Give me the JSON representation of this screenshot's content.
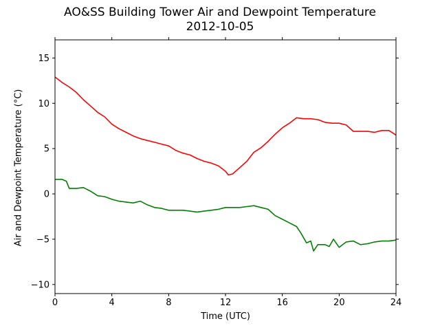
{
  "chart_data": {
    "type": "line",
    "title": "AO&SS Building Tower Air and Dewpoint Temperature",
    "subtitle": "2012-10-05",
    "xlabel": "Time (UTC)",
    "ylabel": "Air and Dewpoint Temperature (°C)",
    "xlim": [
      0,
      24
    ],
    "ylim": [
      -11,
      17
    ],
    "xticks": [
      0,
      4,
      8,
      12,
      16,
      20,
      24
    ],
    "xtick_labels": [
      "0",
      "4",
      "8",
      "12",
      "16",
      "20",
      "24"
    ],
    "yticks": [
      -10,
      -5,
      0,
      5,
      10,
      15
    ],
    "ytick_labels": [
      "−10",
      "−5",
      "0",
      "5",
      "10",
      "15"
    ],
    "grid": false,
    "series": [
      {
        "color": "#ff0000",
        "x": [
          0,
          0.5,
          1,
          1.5,
          2,
          2.5,
          3,
          3.5,
          4,
          4.5,
          5,
          5.5,
          6,
          6.5,
          7,
          7.5,
          8,
          8.5,
          9,
          9.5,
          10,
          10.5,
          11,
          11.5,
          12,
          12.2,
          12.5,
          13,
          13.5,
          14,
          14.5,
          15,
          15.5,
          16,
          16.5,
          17,
          17.5,
          18,
          18.5,
          19,
          19.5,
          20,
          20.5,
          21,
          21.5,
          22,
          22.5,
          23,
          23.5,
          24
        ],
        "values": [
          12.9,
          12.3,
          11.8,
          11.2,
          10.4,
          9.7,
          9.0,
          8.5,
          7.7,
          7.2,
          6.8,
          6.4,
          6.1,
          5.9,
          5.7,
          5.5,
          5.3,
          4.8,
          4.5,
          4.3,
          3.9,
          3.6,
          3.4,
          3.1,
          2.5,
          2.1,
          2.2,
          2.9,
          3.6,
          4.6,
          5.1,
          5.8,
          6.6,
          7.3,
          7.8,
          8.4,
          8.3,
          8.3,
          8.2,
          7.9,
          7.8,
          7.8,
          7.6,
          6.9,
          6.9,
          6.9,
          6.8,
          7.0,
          7.0,
          6.5
        ]
      },
      {
        "color": "#008000",
        "x": [
          0,
          0.5,
          0.8,
          1,
          1.5,
          2,
          2.5,
          3,
          3.5,
          4,
          4.5,
          5,
          5.5,
          6,
          6.5,
          7,
          7.5,
          8,
          8.5,
          9,
          9.5,
          10,
          10.5,
          11,
          11.5,
          12,
          12.5,
          13,
          13.5,
          14,
          14.5,
          15,
          15.5,
          16,
          16.5,
          17,
          17.3,
          17.7,
          18,
          18.2,
          18.5,
          19,
          19.3,
          19.6,
          20,
          20.5,
          21,
          21.5,
          22,
          22.5,
          23,
          23.5,
          24
        ],
        "values": [
          1.6,
          1.6,
          1.4,
          0.6,
          0.6,
          0.7,
          0.3,
          -0.2,
          -0.3,
          -0.6,
          -0.8,
          -0.9,
          -1.0,
          -0.8,
          -1.2,
          -1.5,
          -1.6,
          -1.8,
          -1.8,
          -1.8,
          -1.9,
          -2.0,
          -1.9,
          -1.8,
          -1.7,
          -1.5,
          -1.5,
          -1.5,
          -1.4,
          -1.3,
          -1.5,
          -1.7,
          -2.4,
          -2.8,
          -3.2,
          -3.6,
          -4.3,
          -5.4,
          -5.2,
          -6.3,
          -5.6,
          -5.6,
          -5.8,
          -5.0,
          -5.9,
          -5.3,
          -5.2,
          -5.6,
          -5.5,
          -5.3,
          -5.2,
          -5.2,
          -5.1
        ]
      }
    ]
  }
}
